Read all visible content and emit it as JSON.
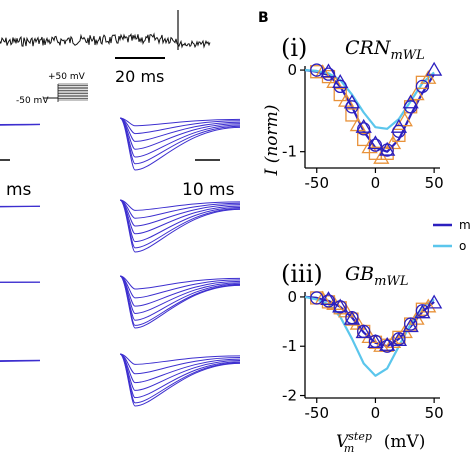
{
  "colors": {
    "model": "#2b1fbf",
    "other": "#5bc6ec",
    "data_orange": "#e8923a",
    "data_blue": "#2b1fbf",
    "trace": "#3d2fcf"
  },
  "left_panel": {
    "scale_bar_top": "20 ms",
    "protocol_high": "+50 mV",
    "protocol_low": "-50 mV",
    "scale_bar_left_partial": "ms",
    "scale_bar_right": "10 ms"
  },
  "panel_b": {
    "letter": "B"
  },
  "legend": {
    "entry_model_partial": "m",
    "entry_other_partial": "o"
  },
  "chart_data": [
    {
      "type": "line",
      "panel_label": "(i)",
      "title_main": "CRN",
      "title_sub": "mWL",
      "ylabel": "I (norm)",
      "xticks": [
        -50,
        0,
        50
      ],
      "yticks": [
        0,
        -1
      ],
      "xlim": [
        -60,
        55
      ],
      "ylim": [
        -1.2,
        0.05
      ],
      "series": [
        {
          "name": "",
          "style": "line",
          "color": "model",
          "x": [
            -60,
            -50,
            -40,
            -30,
            -20,
            -10,
            0,
            10,
            20,
            30,
            40,
            50
          ],
          "y": [
            0,
            -0.02,
            -0.06,
            -0.2,
            -0.45,
            -0.75,
            -0.95,
            -1.0,
            -0.85,
            -0.55,
            -0.28,
            -0.05
          ]
        },
        {
          "name": "",
          "style": "line",
          "color": "other",
          "x": [
            -60,
            -50,
            -40,
            -30,
            -20,
            -10,
            0,
            10,
            20,
            30,
            40,
            50
          ],
          "y": [
            0,
            -0.01,
            -0.04,
            -0.12,
            -0.3,
            -0.52,
            -0.7,
            -0.72,
            -0.6,
            -0.38,
            -0.16,
            -0.03
          ]
        },
        {
          "name": "",
          "style": "square",
          "color": "data_orange",
          "x": [
            -50,
            -40,
            -30,
            -20,
            -10,
            0,
            10,
            20,
            30,
            40
          ],
          "y": [
            -0.02,
            -0.08,
            -0.3,
            -0.55,
            -0.85,
            -1.02,
            -1.02,
            -0.8,
            -0.45,
            -0.15
          ]
        },
        {
          "name": "",
          "style": "triangle",
          "color": "data_orange",
          "x": [
            -45,
            -35,
            -25,
            -15,
            -5,
            5,
            15,
            25,
            35,
            45
          ],
          "y": [
            -0.03,
            -0.15,
            -0.38,
            -0.68,
            -0.95,
            -1.08,
            -0.9,
            -0.62,
            -0.3,
            -0.1
          ]
        },
        {
          "name": "",
          "style": "circle",
          "color": "data_blue",
          "x": [
            -50,
            -40,
            -30,
            -20,
            -10,
            0,
            10,
            20,
            30,
            40
          ],
          "y": [
            0,
            -0.05,
            -0.2,
            -0.45,
            -0.72,
            -0.92,
            -0.98,
            -0.75,
            -0.45,
            -0.2
          ]
        },
        {
          "name": "",
          "style": "triangle",
          "color": "data_blue",
          "x": [
            -40,
            -30,
            -20,
            -10,
            0,
            10,
            20,
            30,
            50
          ],
          "y": [
            -0.02,
            -0.15,
            -0.4,
            -0.7,
            -0.9,
            -0.98,
            -0.7,
            -0.4,
            0
          ]
        }
      ]
    },
    {
      "type": "line",
      "panel_label": "(iii)",
      "title_main": "GB",
      "title_sub": "mWL",
      "xlabel_main": "V",
      "xlabel_sup": "step",
      "xlabel_sub": "m",
      "xlabel_units": "(mV)",
      "xticks": [
        -50,
        0,
        50
      ],
      "yticks": [
        0,
        -1,
        -2
      ],
      "xlim": [
        -60,
        55
      ],
      "ylim": [
        -2.05,
        0.1
      ],
      "series": [
        {
          "name": "",
          "style": "line",
          "color": "model",
          "x": [
            -60,
            -50,
            -40,
            -30,
            -20,
            -10,
            0,
            10,
            20,
            30,
            40,
            50
          ],
          "y": [
            0,
            -0.02,
            -0.08,
            -0.2,
            -0.42,
            -0.72,
            -0.93,
            -1.0,
            -0.85,
            -0.6,
            -0.3,
            -0.1
          ]
        },
        {
          "name": "",
          "style": "line",
          "color": "other",
          "x": [
            -60,
            -50,
            -40,
            -30,
            -20,
            -10,
            0,
            10,
            20,
            30,
            40,
            50
          ],
          "y": [
            0,
            -0.05,
            -0.15,
            -0.4,
            -0.85,
            -1.35,
            -1.6,
            -1.45,
            -1.0,
            -0.55,
            -0.2,
            -0.05
          ]
        },
        {
          "name": "",
          "style": "square",
          "color": "data_orange",
          "x": [
            -50,
            -40,
            -30,
            -20,
            -10,
            0,
            10,
            20,
            30,
            40
          ],
          "y": [
            -0.02,
            -0.1,
            -0.22,
            -0.45,
            -0.7,
            -0.92,
            -0.98,
            -0.82,
            -0.55,
            -0.25
          ]
        },
        {
          "name": "",
          "style": "triangle",
          "color": "data_orange",
          "x": [
            -45,
            -35,
            -25,
            -15,
            -5,
            5,
            15,
            25,
            35,
            45
          ],
          "y": [
            -0.04,
            -0.15,
            -0.3,
            -0.55,
            -0.82,
            -1.0,
            -0.92,
            -0.72,
            -0.45,
            -0.2
          ]
        },
        {
          "name": "",
          "style": "circle",
          "color": "data_blue",
          "x": [
            -50,
            -40,
            -30,
            -20,
            -10,
            0,
            10,
            20,
            30,
            40
          ],
          "y": [
            -0.02,
            -0.08,
            -0.2,
            -0.42,
            -0.7,
            -0.9,
            -1.0,
            -0.85,
            -0.55,
            -0.28
          ]
        },
        {
          "name": "",
          "style": "triangle",
          "color": "data_blue",
          "x": [
            -40,
            -30,
            -20,
            -10,
            0,
            10,
            20,
            30,
            40,
            50
          ],
          "y": [
            -0.05,
            -0.2,
            -0.45,
            -0.72,
            -0.92,
            -0.98,
            -0.88,
            -0.6,
            -0.32,
            -0.12
          ]
        }
      ]
    },
    {
      "type": "line",
      "panel_label": "",
      "title_main": "",
      "note": "Current traces, 4 rows x 2 columns, normalized amplitude per step (+50 mV to -50 mV protocol)",
      "trace_rows": [
        {
          "left_amplitudes": [
            0.05,
            0.08,
            0.1,
            0.12
          ],
          "right_amplitudes": [
            0.15,
            0.3,
            0.45,
            0.6,
            0.75,
            0.88,
            1.0
          ]
        },
        {
          "left_amplitudes": [
            0.04,
            0.06,
            0.08
          ],
          "right_amplitudes": [
            0.2,
            0.35,
            0.5,
            0.65,
            0.8,
            0.92,
            1.0
          ]
        },
        {
          "left_amplitudes": [
            0.02,
            0.03,
            0.04
          ],
          "right_amplitudes": [
            0.25,
            0.42,
            0.58,
            0.72,
            0.85,
            0.95,
            1.0
          ]
        },
        {
          "left_amplitudes": [
            0.06,
            0.1,
            0.14
          ],
          "right_amplitudes": [
            0.2,
            0.38,
            0.55,
            0.7,
            0.84,
            0.94,
            1.0
          ]
        }
      ]
    }
  ]
}
